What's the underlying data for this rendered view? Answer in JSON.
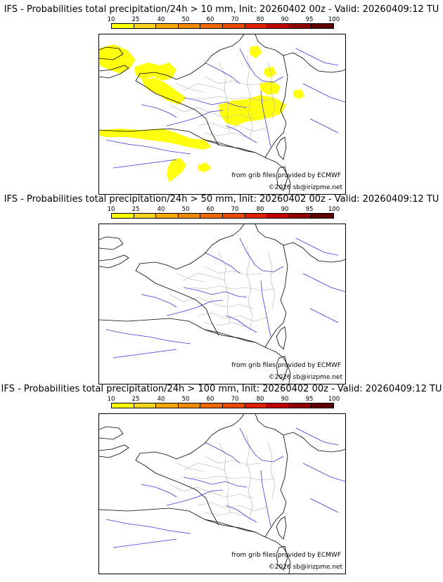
{
  "colors": {
    "scale": [
      "#ffff00",
      "#f7d420",
      "#f5a800",
      "#f08a00",
      "#ee6a00",
      "#e84a00",
      "#e02000",
      "#c00000",
      "#900000",
      "#600000"
    ],
    "border": "#000000",
    "rivers": "#3b3bdc",
    "regions": "#b0b0b0",
    "coast": "#000000"
  },
  "scale_labels": [
    "10",
    "25",
    "40",
    "50",
    "60",
    "70",
    "80",
    "90",
    "95",
    "100"
  ],
  "credit_source": "from grib files provided by ECMWF",
  "credit_copy": "©2026 sb@irizpme.net",
  "panels": [
    {
      "title": "IFS - Probabilities total precipitation/24h > 10 mm, Init: 20260402 00z - Valid: 20260409:12 TU",
      "threshold_mm": 10,
      "shading": "yellow patches over NW France, Brittany, Bay of Biscay, Massif Central/Alps, Spain coast"
    },
    {
      "title": "IFS - Probabilities total precipitation/24h > 50 mm, Init: 20260402 00z - Valid: 20260409:12 TU",
      "threshold_mm": 50,
      "shading": "none"
    },
    {
      "title": "IFS - Probabilities total precipitation/24h > 100 mm, Init: 20260402 00z - Valid: 20260409:12 TU",
      "threshold_mm": 100,
      "shading": "none"
    }
  ]
}
